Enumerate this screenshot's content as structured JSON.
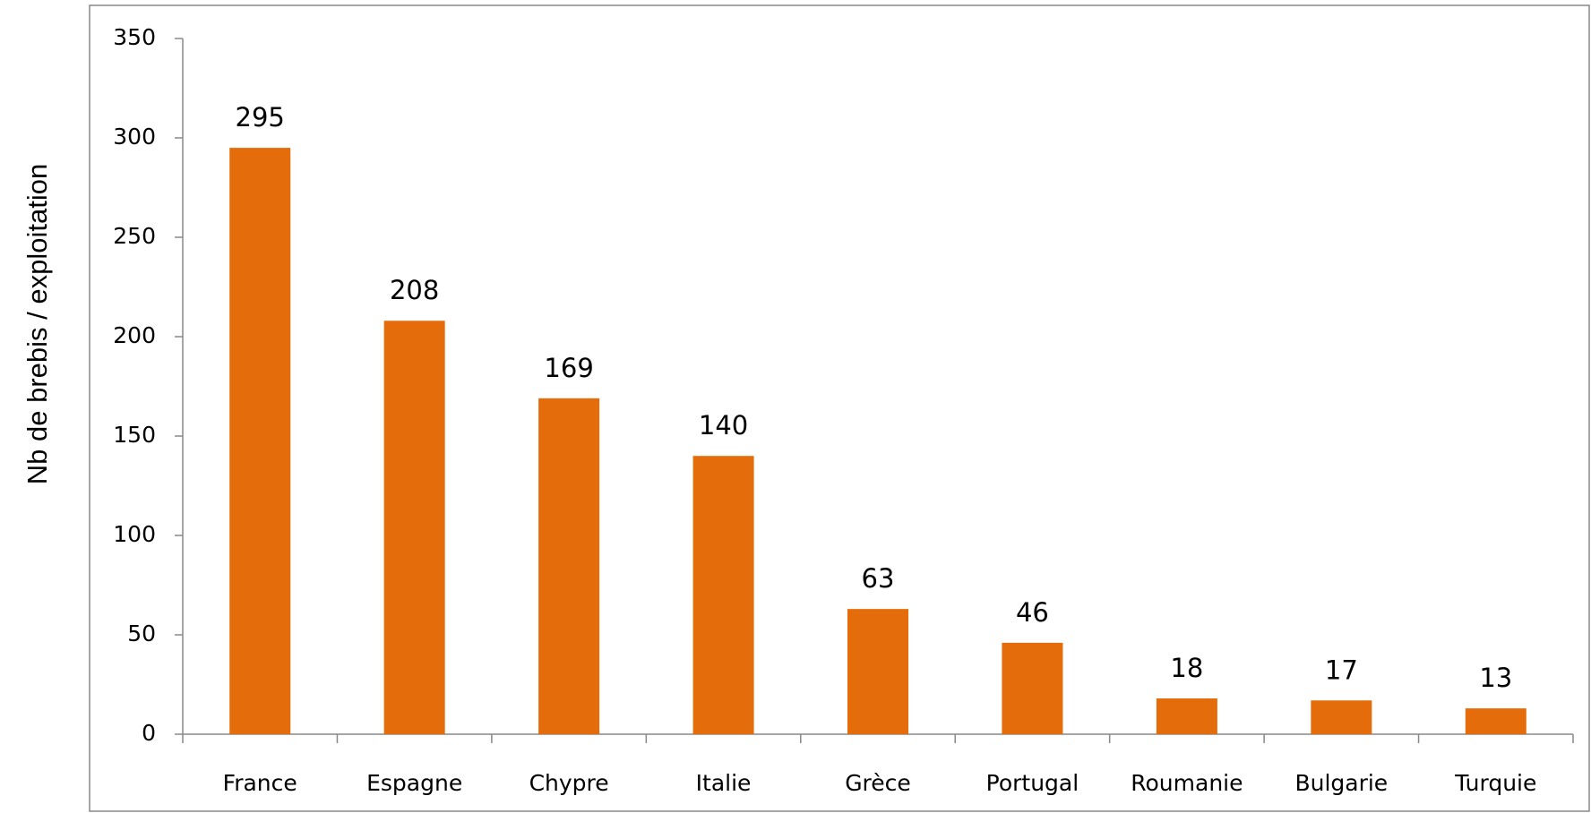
{
  "chart_data": {
    "type": "bar",
    "ylabel": "Nb de brebis / exploitation",
    "categories": [
      "France",
      "Espagne",
      "Chypre",
      "Italie",
      "Grèce",
      "Portugal",
      "Roumanie",
      "Bulgarie",
      "Turquie"
    ],
    "values": [
      295,
      208,
      169,
      140,
      63,
      46,
      18,
      17,
      13
    ],
    "color": "#e46c0a",
    "ylim": [
      0,
      350
    ],
    "yticks": [
      0,
      50,
      100,
      150,
      200,
      250,
      300,
      350
    ],
    "grid": false
  }
}
